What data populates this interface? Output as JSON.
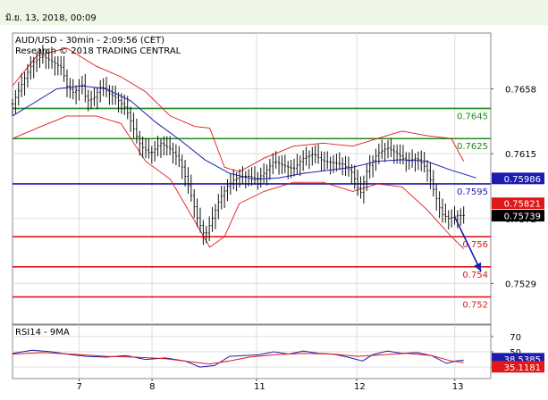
{
  "header": {
    "date": "มิ.ย. 13, 2018, 00:09"
  },
  "chart_data": [
    {
      "type": "candlestick",
      "title": "AUD/USD - 30min - 2:09:56 (CET)",
      "subtitle": "Research © 2018 TRADING CENTRAL",
      "ylim": [
        0.7502,
        0.7695
      ],
      "y_ticks": [
        "0.7658",
        "0.7615",
        "0.7572",
        "0.7529"
      ],
      "y_tick_values": [
        0.7658,
        0.7615,
        0.7572,
        0.7529
      ],
      "x_ticks": [
        "7",
        "8",
        "11",
        "12",
        "13"
      ],
      "x_tick_positions": [
        0.45,
        1.93,
        4.05,
        6.08,
        8.07
      ],
      "x_range": [
        -0.9,
        8.8
      ],
      "levels": [
        {
          "label": "0.7645",
          "value": 0.7645,
          "color": "#1e8a1e"
        },
        {
          "label": "0.7625",
          "value": 0.7625,
          "color": "#1e8a1e"
        },
        {
          "label": "0.7595",
          "value": 0.7595,
          "color": "#1c1cb0"
        },
        {
          "label": "0.756",
          "value": 0.756,
          "color": "#e01818"
        },
        {
          "label": "0.754",
          "value": 0.754,
          "color": "#e01818"
        },
        {
          "label": "0.752",
          "value": 0.752,
          "color": "#e01818"
        }
      ],
      "price_badges": [
        {
          "label": "0.75986",
          "value": 0.75986,
          "color": "#1c1cb0"
        },
        {
          "label": "0.75821",
          "value": 0.75821,
          "color": "#e01818"
        },
        {
          "label": "0.75739",
          "value": 0.75739,
          "color": "#000000"
        }
      ],
      "close_series": [
        [
          -0.9,
          0.7648
        ],
        [
          -0.7,
          0.7662
        ],
        [
          -0.5,
          0.7675
        ],
        [
          -0.3,
          0.768
        ],
        [
          -0.1,
          0.7676
        ],
        [
          0.1,
          0.7672
        ],
        [
          0.2,
          0.766
        ],
        [
          0.35,
          0.7655
        ],
        [
          0.5,
          0.7662
        ],
        [
          0.6,
          0.765
        ],
        [
          0.75,
          0.7652
        ],
        [
          0.9,
          0.766
        ],
        [
          1.05,
          0.7655
        ],
        [
          1.2,
          0.7652
        ],
        [
          1.4,
          0.7645
        ],
        [
          1.55,
          0.7632
        ],
        [
          1.7,
          0.762
        ],
        [
          1.9,
          0.7615
        ],
        [
          2.1,
          0.7622
        ],
        [
          2.3,
          0.7618
        ],
        [
          2.5,
          0.761
        ],
        [
          2.7,
          0.759
        ],
        [
          2.85,
          0.7572
        ],
        [
          3.0,
          0.756
        ],
        [
          3.15,
          0.7572
        ],
        [
          3.3,
          0.7585
        ],
        [
          3.45,
          0.7593
        ],
        [
          3.6,
          0.7598
        ],
        [
          3.75,
          0.76
        ],
        [
          3.9,
          0.76
        ],
        [
          4.05,
          0.7598
        ],
        [
          4.2,
          0.7602
        ],
        [
          4.4,
          0.761
        ],
        [
          4.6,
          0.7607
        ],
        [
          4.8,
          0.7605
        ],
        [
          5.0,
          0.7612
        ],
        [
          5.2,
          0.7615
        ],
        [
          5.4,
          0.761
        ],
        [
          5.6,
          0.7609
        ],
        [
          5.8,
          0.7608
        ],
        [
          6.0,
          0.7602
        ],
        [
          6.15,
          0.7588
        ],
        [
          6.3,
          0.7605
        ],
        [
          6.5,
          0.7615
        ],
        [
          6.7,
          0.7619
        ],
        [
          6.9,
          0.7615
        ],
        [
          7.1,
          0.761
        ],
        [
          7.3,
          0.7612
        ],
        [
          7.5,
          0.7605
        ],
        [
          7.65,
          0.759
        ],
        [
          7.8,
          0.7575
        ],
        [
          7.95,
          0.7572
        ],
        [
          8.1,
          0.7574
        ],
        [
          8.25,
          0.7574
        ]
      ],
      "ma_series": [
        [
          -0.9,
          0.764
        ],
        [
          -0.4,
          0.765
        ],
        [
          0.0,
          0.7658
        ],
        [
          0.5,
          0.766
        ],
        [
          1.0,
          0.7658
        ],
        [
          1.5,
          0.765
        ],
        [
          2.0,
          0.7636
        ],
        [
          2.5,
          0.7624
        ],
        [
          3.0,
          0.7611
        ],
        [
          3.5,
          0.7602
        ],
        [
          4.0,
          0.7598
        ],
        [
          4.5,
          0.7599
        ],
        [
          5.0,
          0.7602
        ],
        [
          5.5,
          0.7604
        ],
        [
          6.0,
          0.7606
        ],
        [
          6.5,
          0.761
        ],
        [
          7.0,
          0.7611
        ],
        [
          7.5,
          0.761
        ],
        [
          8.0,
          0.7604
        ],
        [
          8.5,
          0.7599
        ]
      ],
      "bb_upper": [
        [
          -0.9,
          0.766
        ],
        [
          -0.4,
          0.768
        ],
        [
          0.2,
          0.7685
        ],
        [
          0.8,
          0.7673
        ],
        [
          1.3,
          0.7666
        ],
        [
          1.8,
          0.7656
        ],
        [
          2.3,
          0.764
        ],
        [
          2.8,
          0.7633
        ],
        [
          3.1,
          0.7632
        ],
        [
          3.4,
          0.7606
        ],
        [
          3.7,
          0.7603
        ],
        [
          4.2,
          0.7612
        ],
        [
          4.8,
          0.762
        ],
        [
          5.4,
          0.7622
        ],
        [
          6.0,
          0.762
        ],
        [
          6.5,
          0.7625
        ],
        [
          7.0,
          0.763
        ],
        [
          7.5,
          0.7627
        ],
        [
          8.0,
          0.7625
        ],
        [
          8.25,
          0.761
        ]
      ],
      "bb_lower": [
        [
          -0.9,
          0.7625
        ],
        [
          -0.4,
          0.7632
        ],
        [
          0.2,
          0.764
        ],
        [
          0.8,
          0.764
        ],
        [
          1.3,
          0.7635
        ],
        [
          1.8,
          0.761
        ],
        [
          2.3,
          0.7598
        ],
        [
          2.8,
          0.757
        ],
        [
          3.1,
          0.7553
        ],
        [
          3.4,
          0.756
        ],
        [
          3.7,
          0.7582
        ],
        [
          4.2,
          0.759
        ],
        [
          4.8,
          0.7596
        ],
        [
          5.4,
          0.7596
        ],
        [
          6.0,
          0.759
        ],
        [
          6.5,
          0.7595
        ],
        [
          7.0,
          0.7593
        ],
        [
          7.5,
          0.7578
        ],
        [
          8.0,
          0.756
        ],
        [
          8.25,
          0.7552
        ]
      ],
      "forecast_arrow": {
        "from": [
          8.07,
          0.7573
        ],
        "to": [
          8.6,
          0.7537
        ],
        "color": "#1c1cb0"
      }
    },
    {
      "type": "line",
      "title": "RSI14 - 9MA",
      "ylim": [
        15,
        85
      ],
      "y_ticks": [
        "70",
        "50",
        "30"
      ],
      "y_tick_values": [
        70,
        50,
        30
      ],
      "badges": [
        {
          "label": "38.5385",
          "value": 38.5385,
          "color": "#1c1cb0"
        },
        {
          "label": "35.1181",
          "value": 35.1181,
          "color": "#e01818"
        }
      ],
      "series": [
        {
          "color": "#1c1cb0",
          "values": [
            [
              -0.9,
              48
            ],
            [
              -0.5,
              52
            ],
            [
              -0.1,
              50
            ],
            [
              0.3,
              46
            ],
            [
              0.6,
              44
            ],
            [
              1.0,
              43
            ],
            [
              1.4,
              45
            ],
            [
              1.8,
              40
            ],
            [
              2.2,
              42
            ],
            [
              2.6,
              38
            ],
            [
              2.9,
              30
            ],
            [
              3.2,
              32
            ],
            [
              3.5,
              44
            ],
            [
              3.8,
              45
            ],
            [
              4.1,
              46
            ],
            [
              4.4,
              50
            ],
            [
              4.7,
              47
            ],
            [
              5.0,
              51
            ],
            [
              5.3,
              48
            ],
            [
              5.6,
              47
            ],
            [
              5.9,
              43
            ],
            [
              6.2,
              38
            ],
            [
              6.4,
              46
            ],
            [
              6.7,
              51
            ],
            [
              7.0,
              48
            ],
            [
              7.3,
              49
            ],
            [
              7.6,
              45
            ],
            [
              7.9,
              35
            ],
            [
              8.1,
              38
            ],
            [
              8.25,
              39
            ]
          ]
        },
        {
          "color": "#e01818",
          "values": [
            [
              -0.9,
              47
            ],
            [
              -0.3,
              49
            ],
            [
              0.3,
              47
            ],
            [
              1.0,
              44
            ],
            [
              1.6,
              43
            ],
            [
              2.2,
              41
            ],
            [
              2.7,
              37
            ],
            [
              3.1,
              34
            ],
            [
              3.5,
              38
            ],
            [
              3.9,
              43
            ],
            [
              4.4,
              46
            ],
            [
              5.0,
              48
            ],
            [
              5.6,
              47
            ],
            [
              6.1,
              44
            ],
            [
              6.6,
              46
            ],
            [
              7.1,
              48
            ],
            [
              7.6,
              45
            ],
            [
              8.0,
              38
            ],
            [
              8.25,
              36
            ]
          ]
        }
      ]
    }
  ]
}
